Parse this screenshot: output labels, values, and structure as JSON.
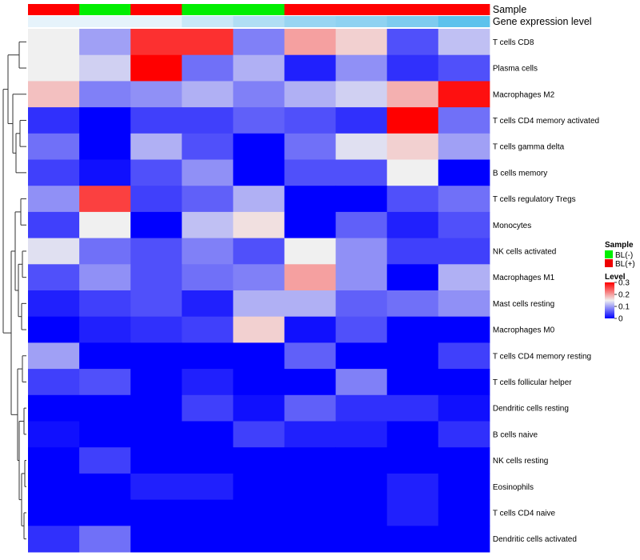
{
  "chart_data": {
    "type": "heatmap",
    "annotation_labels": [
      "Sample",
      "Gene expression level"
    ],
    "columns": 9,
    "sample_annotation": [
      "BL(+)",
      "BL(-)",
      "BL(+)",
      "BL(-)",
      "BL(-)",
      "BL(+)",
      "BL(+)",
      "BL(+)",
      "BL(+)"
    ],
    "expression_annotation": [
      "#e6f3fb",
      "#e6f3fb",
      "#e6f3fb",
      "#c8e8f7",
      "#b0def4",
      "#98d5f2",
      "#8fd2f1",
      "#7ecbef",
      "#5cc2ec"
    ],
    "rows": [
      "T cells CD8",
      "Plasma cells",
      "Macrophages M2",
      "T cells CD4 memory activated",
      "T cells gamma delta",
      "B cells memory",
      "T cells regulatory  Tregs",
      "Monocytes",
      "NK cells activated",
      "Macrophages M1",
      "Mast cells resting",
      "Macrophages M0",
      "T cells CD4 memory resting",
      "T cells follicular helper",
      "Dendritic cells resting",
      "B cells naive",
      "NK cells resting",
      "Eosinophils",
      "T cells CD4 naive",
      "Dendritic cells activated"
    ],
    "values": [
      [
        0.15,
        0.1,
        0.27,
        0.27,
        0.08,
        0.2,
        0.17,
        0.05,
        0.12
      ],
      [
        0.15,
        0.13,
        0.3,
        0.07,
        0.11,
        0.02,
        0.09,
        0.03,
        0.05
      ],
      [
        0.18,
        0.08,
        0.09,
        0.11,
        0.08,
        0.11,
        0.13,
        0.19,
        0.29
      ],
      [
        0.03,
        0.0,
        0.04,
        0.04,
        0.06,
        0.05,
        0.03,
        0.3,
        0.07
      ],
      [
        0.07,
        0.0,
        0.11,
        0.05,
        0.0,
        0.07,
        0.14,
        0.17,
        0.1
      ],
      [
        0.04,
        0.01,
        0.05,
        0.09,
        0.0,
        0.05,
        0.05,
        0.15,
        0.0
      ],
      [
        0.09,
        0.26,
        0.04,
        0.06,
        0.11,
        0.0,
        0.0,
        0.05,
        0.07
      ],
      [
        0.04,
        0.15,
        0.0,
        0.12,
        0.16,
        0.0,
        0.06,
        0.02,
        0.05
      ],
      [
        0.14,
        0.07,
        0.05,
        0.08,
        0.05,
        0.15,
        0.09,
        0.04,
        0.04
      ],
      [
        0.05,
        0.09,
        0.05,
        0.07,
        0.08,
        0.2,
        0.09,
        0.0,
        0.11
      ],
      [
        0.02,
        0.04,
        0.05,
        0.02,
        0.11,
        0.11,
        0.06,
        0.07,
        0.09
      ],
      [
        0.0,
        0.02,
        0.03,
        0.04,
        0.17,
        0.01,
        0.05,
        0.0,
        0.0
      ],
      [
        0.1,
        0.0,
        0.0,
        0.0,
        0.0,
        0.06,
        0.0,
        0.0,
        0.04
      ],
      [
        0.04,
        0.05,
        0.0,
        0.02,
        0.0,
        0.0,
        0.08,
        0.0,
        0.0
      ],
      [
        0.0,
        0.0,
        0.0,
        0.04,
        0.01,
        0.06,
        0.03,
        0.03,
        0.01
      ],
      [
        0.01,
        0.0,
        0.0,
        0.0,
        0.04,
        0.02,
        0.02,
        0.0,
        0.03
      ],
      [
        0.0,
        0.04,
        0.0,
        0.0,
        0.0,
        0.0,
        0.0,
        0.0,
        0.0
      ],
      [
        0.0,
        0.0,
        0.02,
        0.02,
        0.0,
        0.0,
        0.0,
        0.02,
        0.0
      ],
      [
        0.0,
        0.0,
        0.0,
        0.0,
        0.0,
        0.0,
        0.0,
        0.02,
        0.0
      ],
      [
        0.03,
        0.07,
        0.0,
        0.0,
        0.0,
        0.0,
        0.0,
        0.0,
        0.0
      ]
    ],
    "color_scale": {
      "min": 0,
      "max": 0.3,
      "low": "#0000ff",
      "mid": "#f0f0f0",
      "high": "#ff0000",
      "mid_value": 0.15
    },
    "legend": {
      "sample_title": "Sample",
      "sample_items": [
        {
          "label": "BL(-)",
          "color": "#00ee00"
        },
        {
          "label": "BL(+)",
          "color": "#ee0000"
        }
      ],
      "level_title": "Level",
      "level_ticks": [
        "0.3",
        "0.2",
        "0.1",
        "0"
      ],
      "level_tick_values": [
        0.3,
        0.2,
        0.1,
        0
      ],
      "placement": "right"
    },
    "row_dendrogram": true,
    "sample_colors": {
      "BL(+)": "#ff0000",
      "BL(-)": "#00ee00"
    }
  }
}
